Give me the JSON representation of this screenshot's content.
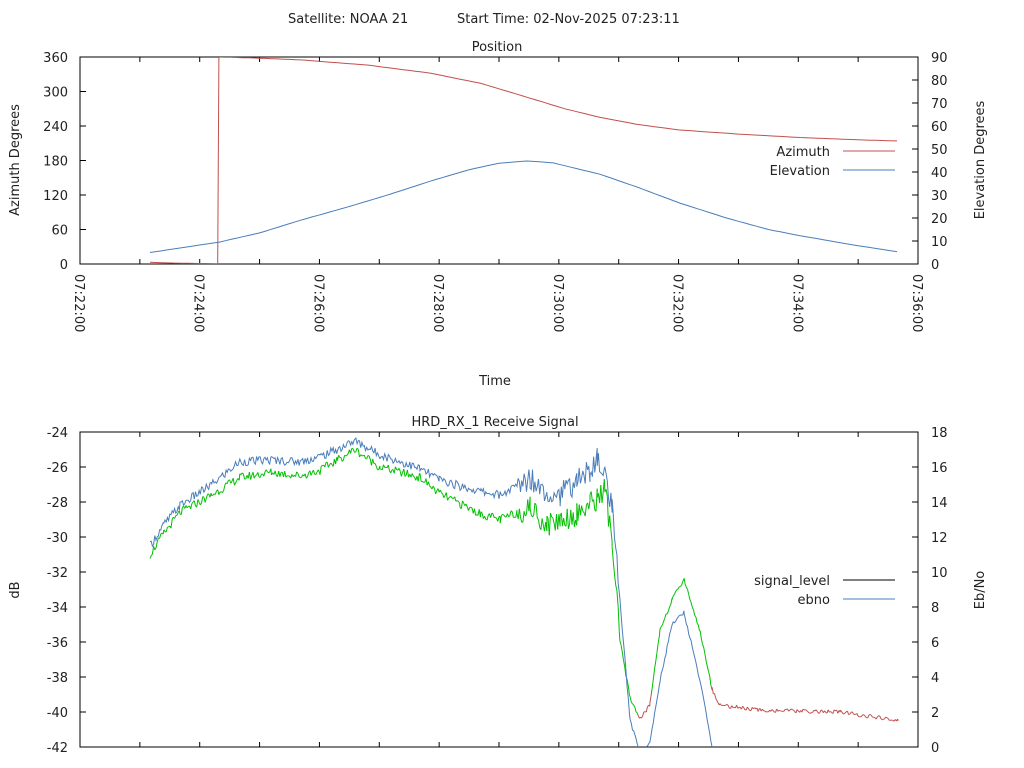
{
  "header": {
    "satellite": "Satellite: NOAA 21",
    "start_time": "Start Time: 02-Nov-2025 07:23:11"
  },
  "chart_data": [
    {
      "type": "line",
      "title": "Position",
      "xlabel": "Time",
      "ylabel": "Azimuth Degrees",
      "y2label": "Elevation Degrees",
      "x_unit": "minutes after 07:22:00",
      "xlim": [
        0,
        14
      ],
      "ylim": [
        0,
        360
      ],
      "y2lim": [
        0,
        90
      ],
      "xticks": [
        "07:22:00",
        "07:24:00",
        "07:26:00",
        "07:28:00",
        "07:30:00",
        "07:32:00",
        "07:34:00",
        "07:36:00"
      ],
      "yticks": [
        "0",
        "60",
        "120",
        "180",
        "240",
        "300",
        "360"
      ],
      "y2ticks": [
        "0",
        "10",
        "20",
        "30",
        "40",
        "50",
        "60",
        "70",
        "80",
        "90"
      ],
      "legend_position": "right",
      "series": [
        {
          "name": "Azimuth",
          "axis": "y",
          "color": "#c0504d",
          "points": [
            [
              1.17,
              3
            ],
            [
              1.6,
              1.5
            ],
            [
              2.32,
              0.5
            ],
            [
              2.32,
              360
            ],
            [
              3.0,
              358
            ],
            [
              3.68,
              355
            ],
            [
              4.8,
              346
            ],
            [
              5.85,
              332
            ],
            [
              6.7,
              314
            ],
            [
              7.47,
              290
            ],
            [
              8.1,
              270
            ],
            [
              8.69,
              255
            ],
            [
              9.3,
              243
            ],
            [
              10.02,
              233
            ],
            [
              11.0,
              226
            ],
            [
              12.03,
              220
            ],
            [
              13.0,
              216
            ],
            [
              13.65,
              214
            ]
          ]
        },
        {
          "name": "Elevation",
          "axis": "y2",
          "color": "#4a7ebb",
          "points": [
            [
              1.17,
              5
            ],
            [
              2.32,
              9.5
            ],
            [
              3.0,
              13.5
            ],
            [
              3.68,
              19
            ],
            [
              4.5,
              25
            ],
            [
              5.2,
              30.5
            ],
            [
              5.85,
              36
            ],
            [
              6.5,
              41
            ],
            [
              7.0,
              43.8
            ],
            [
              7.47,
              44.8
            ],
            [
              7.9,
              44
            ],
            [
              8.69,
              39
            ],
            [
              9.3,
              33.5
            ],
            [
              10.02,
              26.5
            ],
            [
              10.8,
              20
            ],
            [
              11.5,
              15
            ],
            [
              12.03,
              12.3
            ],
            [
              12.8,
              8.8
            ],
            [
              13.65,
              5.3
            ]
          ]
        }
      ]
    },
    {
      "type": "line",
      "title": "HRD_RX_1 Receive Signal",
      "xlabel": "",
      "ylabel": "dB",
      "y2label": "Eb/No",
      "x_unit": "minutes after 07:22:00",
      "xlim": [
        0,
        14
      ],
      "ylim": [
        -42,
        -24
      ],
      "y2lim": [
        0,
        18
      ],
      "yticks": [
        "-24",
        "-26",
        "-28",
        "-30",
        "-32",
        "-34",
        "-36",
        "-38",
        "-40",
        "-42"
      ],
      "y2ticks": [
        "0",
        "2",
        "4",
        "6",
        "8",
        "10",
        "12",
        "14",
        "16",
        "18"
      ],
      "legend_position": "right",
      "series": [
        {
          "name": "signal_level",
          "axis": "y",
          "legend_color": "#000000",
          "color_good": "#00c000",
          "color_bad": "#c0504d",
          "points": [
            [
              1.17,
              -31.0
            ],
            [
              1.4,
              -29.8
            ],
            [
              1.67,
              -28.6
            ],
            [
              2.2,
              -27.6
            ],
            [
              2.67,
              -26.6
            ],
            [
              3.2,
              -26.3
            ],
            [
              3.68,
              -26.5
            ],
            [
              4.01,
              -26.2
            ],
            [
              4.3,
              -25.6
            ],
            [
              4.59,
              -25.0
            ],
            [
              5.01,
              -26.0
            ],
            [
              5.68,
              -26.6
            ],
            [
              6.0,
              -27.5
            ],
            [
              6.35,
              -28.1
            ],
            [
              6.7,
              -28.7
            ],
            [
              7.02,
              -29.0
            ],
            [
              7.3,
              -28.6
            ],
            [
              7.52,
              -28.3
            ],
            [
              7.8,
              -29.3
            ],
            [
              8.02,
              -29.0
            ],
            [
              8.3,
              -28.7
            ],
            [
              8.52,
              -28.1
            ],
            [
              8.64,
              -27.8
            ],
            [
              8.77,
              -27.2
            ],
            [
              8.89,
              -30.3
            ],
            [
              9.02,
              -35.9
            ],
            [
              9.19,
              -39.2
            ],
            [
              9.36,
              -40.4
            ],
            [
              9.52,
              -39.6
            ],
            [
              9.69,
              -35.3
            ],
            [
              9.89,
              -33.6
            ],
            [
              10.09,
              -32.4
            ],
            [
              10.36,
              -35.4
            ],
            [
              10.56,
              -38.7
            ],
            [
              10.69,
              -39.6
            ],
            [
              11.36,
              -39.9
            ],
            [
              12.7,
              -40.0
            ],
            [
              13.67,
              -40.5
            ]
          ]
        },
        {
          "name": "ebno",
          "axis": "y2",
          "color": "#4a7ebb",
          "points": [
            [
              1.17,
              11.5
            ],
            [
              1.4,
              12.7
            ],
            [
              1.67,
              13.8
            ],
            [
              2.2,
              15.0
            ],
            [
              2.67,
              16.3
            ],
            [
              3.2,
              16.4
            ],
            [
              3.68,
              16.3
            ],
            [
              4.01,
              16.6
            ],
            [
              4.3,
              17.0
            ],
            [
              4.59,
              17.5
            ],
            [
              5.01,
              16.7
            ],
            [
              5.68,
              15.9
            ],
            [
              6.0,
              15.3
            ],
            [
              6.35,
              14.9
            ],
            [
              6.7,
              14.6
            ],
            [
              7.02,
              14.4
            ],
            [
              7.3,
              14.9
            ],
            [
              7.52,
              15.4
            ],
            [
              7.8,
              14.6
            ],
            [
              8.02,
              14.4
            ],
            [
              8.3,
              15.2
            ],
            [
              8.52,
              15.8
            ],
            [
              8.64,
              16.4
            ],
            [
              8.77,
              15.6
            ],
            [
              8.89,
              13.5
            ],
            [
              9.02,
              8.4
            ],
            [
              9.19,
              1.5
            ],
            [
              9.36,
              -0.3
            ],
            [
              9.52,
              0.2
            ],
            [
              9.69,
              3.8
            ],
            [
              9.89,
              7.0
            ],
            [
              10.09,
              7.7
            ],
            [
              10.36,
              3.8
            ],
            [
              10.56,
              0.0
            ]
          ]
        }
      ]
    }
  ]
}
